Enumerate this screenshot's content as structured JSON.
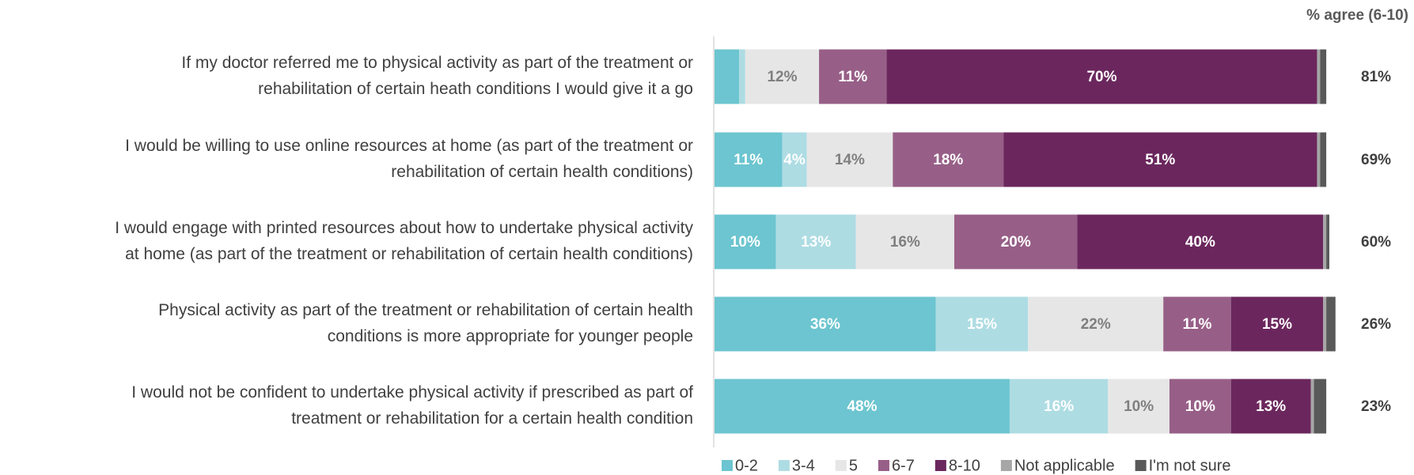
{
  "chart_data": {
    "type": "stacked_bar_horizontal",
    "categories": [
      [
        "If my doctor referred me to physical activity as part of the treatment or",
        "rehabilitation of certain heath conditions I would give it a go"
      ],
      [
        "I would be willing to use online resources at home (as part of the treatment or",
        "rehabilitation of certain health conditions)"
      ],
      [
        "I would engage with printed resources about how to undertake physical activity",
        "at home (as part of the treatment or rehabilitation of certain health conditions)"
      ],
      [
        "Physical activity as part of the treatment or rehabilitation of certain health",
        "conditions is more appropriate for younger people"
      ],
      [
        "I would not be confident to undertake physical activity if prescribed as part of",
        "treatment or rehabilitation for a certain health condition"
      ]
    ],
    "xlim": [
      0,
      100
    ],
    "series": [
      {
        "name": "0-2",
        "color": "#6cc5d0",
        "label_color": "#ffffff",
        "values": [
          4,
          11,
          10,
          36,
          48
        ],
        "value_labels": [
          null,
          "11%",
          "10%",
          "36%",
          "48%"
        ]
      },
      {
        "name": "3-4",
        "color": "#aedce3",
        "label_color": "#ffffff",
        "values": [
          1,
          4,
          13,
          15,
          16
        ],
        "value_labels": [
          null,
          "4%",
          "13%",
          "15%",
          "16%"
        ]
      },
      {
        "name": "5",
        "color": "#e6e6e6",
        "label_color": "#7f7f7f",
        "values": [
          12,
          14,
          16,
          22,
          10
        ],
        "value_labels": [
          "12%",
          "14%",
          "16%",
          "22%",
          "10%"
        ]
      },
      {
        "name": "6-7",
        "color": "#975f87",
        "label_color": "#ffffff",
        "values": [
          11,
          18,
          20,
          11,
          10
        ],
        "value_labels": [
          "11%",
          "18%",
          "20%",
          "11%",
          "10%"
        ]
      },
      {
        "name": "8-10",
        "color": "#6b275d",
        "label_color": "#ffffff",
        "values": [
          70,
          51,
          40,
          15,
          13
        ],
        "value_labels": [
          "70%",
          "51%",
          "40%",
          "15%",
          "13%"
        ]
      },
      {
        "name": "Not applicable",
        "color": "#a6a6a6",
        "values": [
          0.5,
          0.5,
          0.5,
          0.5,
          0.5
        ]
      },
      {
        "name": "I'm not sure",
        "color": "#595959",
        "values": [
          1,
          1,
          0.5,
          1.5,
          2
        ]
      }
    ],
    "totals": {
      "name": "% agree (6-10)",
      "values": [
        81,
        69,
        60,
        26,
        23
      ],
      "value_labels": [
        "81%",
        "69%",
        "60%",
        "26%",
        "23%"
      ]
    }
  }
}
